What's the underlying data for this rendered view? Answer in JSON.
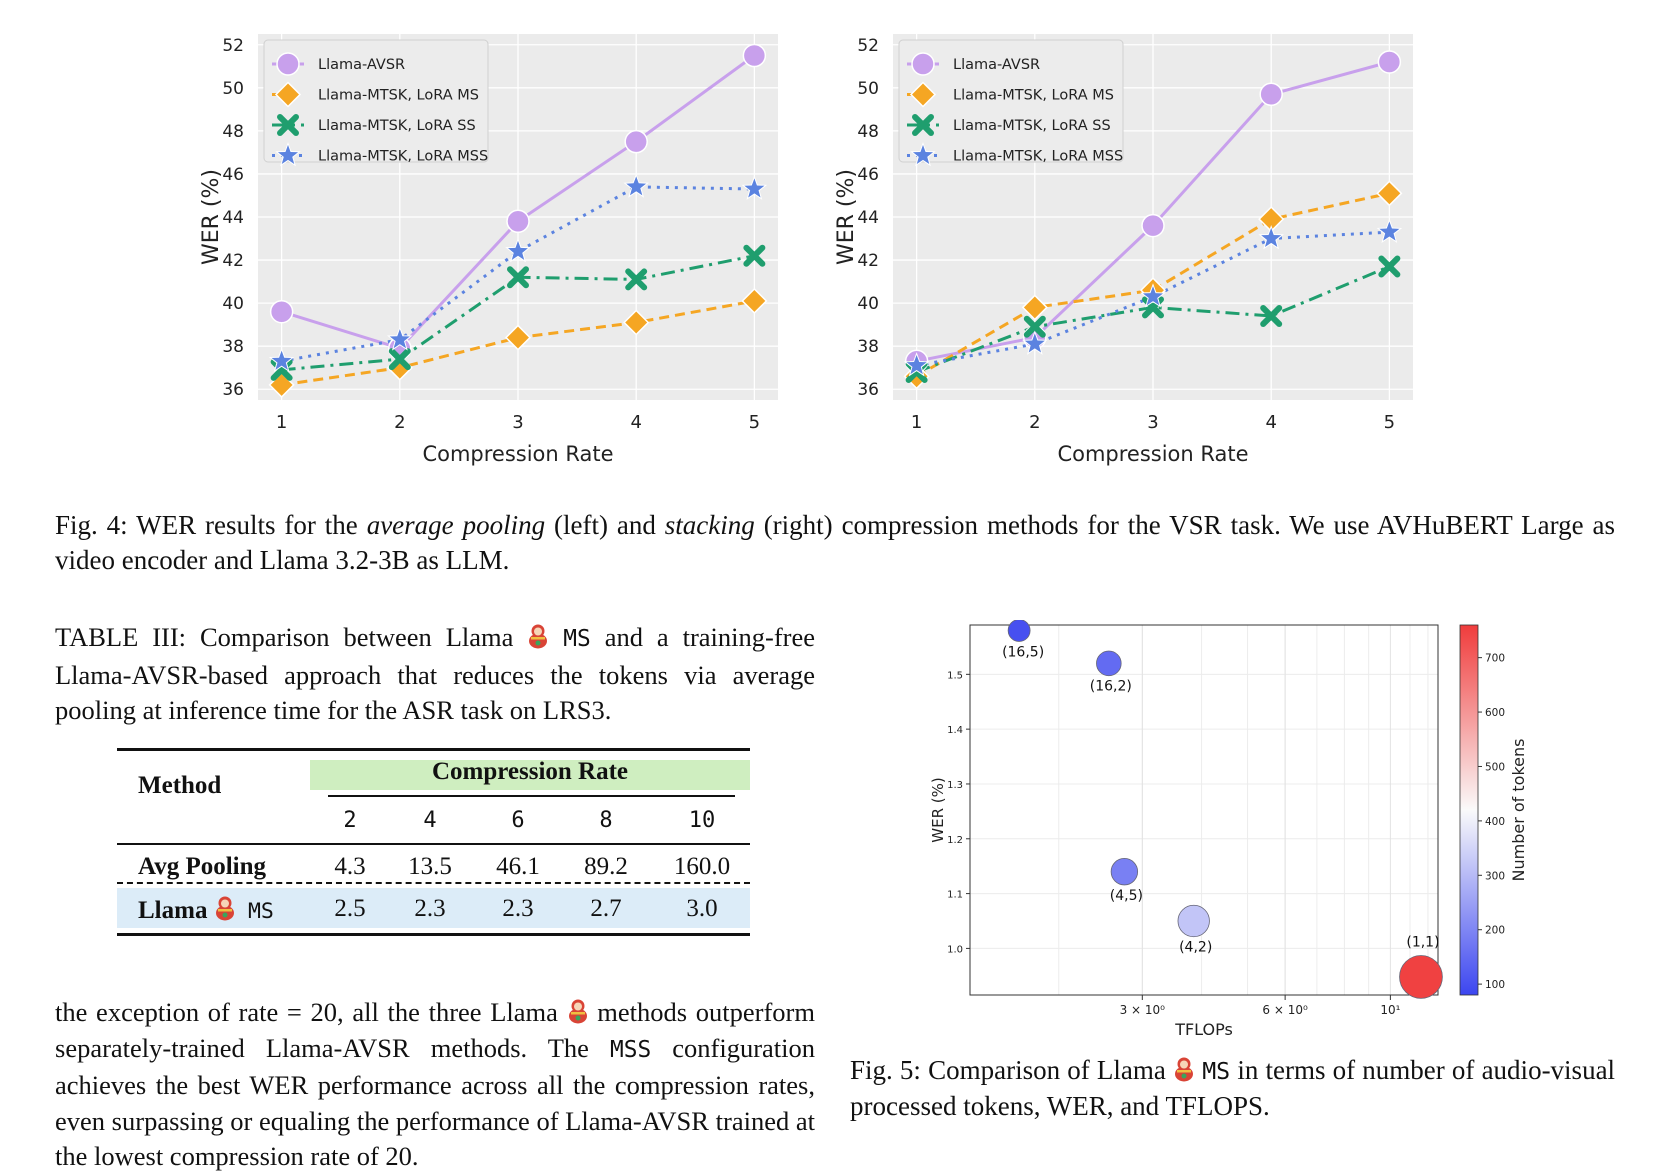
{
  "colors": {
    "llama_avsr": "#c8a0ec",
    "lora_ms": "#f5a623",
    "lora_ss": "#1f9e6e",
    "lora_mss": "#5b83e0",
    "plot_bg": "#ebebeb",
    "table_header_bg": "#cfeec0",
    "table_row_bg": "#dcecf8"
  },
  "chart_data": [
    {
      "type": "line",
      "ylabel": "WER (%)",
      "xlabel": "Compression Rate",
      "x": [
        1,
        2,
        3,
        4,
        5
      ],
      "ylim": [
        35.5,
        52.5
      ],
      "yticks": [
        "36",
        "38",
        "40",
        "42",
        "44",
        "46",
        "48",
        "50",
        "52"
      ],
      "xticks": [
        "1",
        "2",
        "3",
        "4",
        "5"
      ],
      "grid": true,
      "legend_position": "top-left",
      "series": [
        {
          "name": "Llama-AVSR",
          "values": [
            39.6,
            37.9,
            43.8,
            47.5,
            51.5
          ]
        },
        {
          "name": "Llama-MTSK, LoRA MS",
          "values": [
            36.2,
            37.0,
            38.4,
            39.1,
            40.1
          ]
        },
        {
          "name": "Llama-MTSK, LoRA SS",
          "values": [
            36.9,
            37.4,
            41.2,
            41.1,
            42.2
          ]
        },
        {
          "name": "Llama-MTSK, LoRA MSS",
          "values": [
            37.3,
            38.3,
            42.4,
            45.4,
            45.3
          ]
        }
      ]
    },
    {
      "type": "line",
      "ylabel": "WER (%)",
      "xlabel": "Compression Rate",
      "x": [
        1,
        2,
        3,
        4,
        5
      ],
      "ylim": [
        35.5,
        52.5
      ],
      "yticks": [
        "36",
        "38",
        "40",
        "42",
        "44",
        "46",
        "48",
        "50",
        "52"
      ],
      "xticks": [
        "1",
        "2",
        "3",
        "4",
        "5"
      ],
      "grid": true,
      "legend_position": "top-left",
      "series": [
        {
          "name": "Llama-AVSR",
          "values": [
            37.3,
            38.4,
            43.6,
            49.7,
            51.2
          ]
        },
        {
          "name": "Llama-MTSK, LoRA MS",
          "values": [
            36.6,
            39.8,
            40.6,
            43.9,
            45.1
          ]
        },
        {
          "name": "Llama-MTSK, LoRA SS",
          "values": [
            36.8,
            38.9,
            39.8,
            39.4,
            41.7
          ]
        },
        {
          "name": "Llama-MTSK, LoRA MSS",
          "values": [
            37.1,
            38.1,
            40.3,
            43.0,
            43.3
          ]
        }
      ]
    },
    {
      "type": "scatter",
      "ylabel": "WER (%)",
      "xlabel": "TFLOPs",
      "x_scale": "log",
      "xticks": [
        {
          "value": 3,
          "label": "3 × 10⁰"
        },
        {
          "value": 6,
          "label": "6 × 10⁰"
        },
        {
          "value": 10,
          "label": "10¹"
        }
      ],
      "yticks": [
        "1.0",
        "1.1",
        "1.2",
        "1.3",
        "1.4",
        "1.5"
      ],
      "ylim": [
        0.915,
        1.59
      ],
      "xlim": [
        1.3,
        12.6
      ],
      "colorbar": {
        "label": "Number of tokens",
        "ticks": [
          "100",
          "200",
          "300",
          "400",
          "500",
          "600",
          "700"
        ],
        "range": [
          80,
          760
        ]
      },
      "points": [
        {
          "label": "(16,5)",
          "x": 1.65,
          "y": 1.58,
          "tokens": 100
        },
        {
          "label": "(16,2)",
          "x": 2.55,
          "y": 1.52,
          "tokens": 150
        },
        {
          "label": "(4,5)",
          "x": 2.75,
          "y": 1.14,
          "tokens": 190
        },
        {
          "label": "(4,2)",
          "x": 3.85,
          "y": 1.05,
          "tokens": 320
        },
        {
          "label": "(1,1)",
          "x": 11.6,
          "y": 0.948,
          "tokens": 750
        }
      ]
    }
  ],
  "fig4": {
    "label": "Fig. 4:",
    "text1": "WER results for the",
    "italic1": "average pooling",
    "text2": "(left) and",
    "italic2": "stacking",
    "text3": "(right) compression methods for the VSR task. We use AVHuBERT Large as video encoder and Llama 3.2-3B as LLM."
  },
  "table_caption": {
    "part1": "TABLE III: Comparison between Llama",
    "ms": "MS",
    "part2": "and a training-free Llama-AVSR-based approach that reduces the tokens via average pooling at inference time for the ASR task on LRS3."
  },
  "table": {
    "method_header": "Method",
    "group_header": "Compression Rate",
    "rates": [
      "2",
      "4",
      "6",
      "8",
      "10"
    ],
    "rows": [
      {
        "method": "Avg Pooling",
        "suffix": "",
        "values": [
          "4.3",
          "13.5",
          "46.1",
          "89.2",
          "160.0"
        ]
      },
      {
        "method": "Llama",
        "suffix": "MS",
        "values": [
          "2.5",
          "2.3",
          "2.3",
          "2.7",
          "3.0"
        ]
      }
    ]
  },
  "body_text": {
    "part1": "the exception of rate = 20, all the three Llama",
    "part2": "methods outperform separately-trained Llama-AVSR methods. The",
    "mss": "MSS",
    "part3": "configuration achieves the best WER performance across all the compression rates, even surpassing or equaling the performance of Llama-AVSR trained at the lowest compression rate of 20."
  },
  "fig5": {
    "part1": "Fig. 5: Comparison of Llama",
    "ms": "MS",
    "part2": "in terms of number of audio-visual processed tokens, WER, and TFLOPS."
  }
}
